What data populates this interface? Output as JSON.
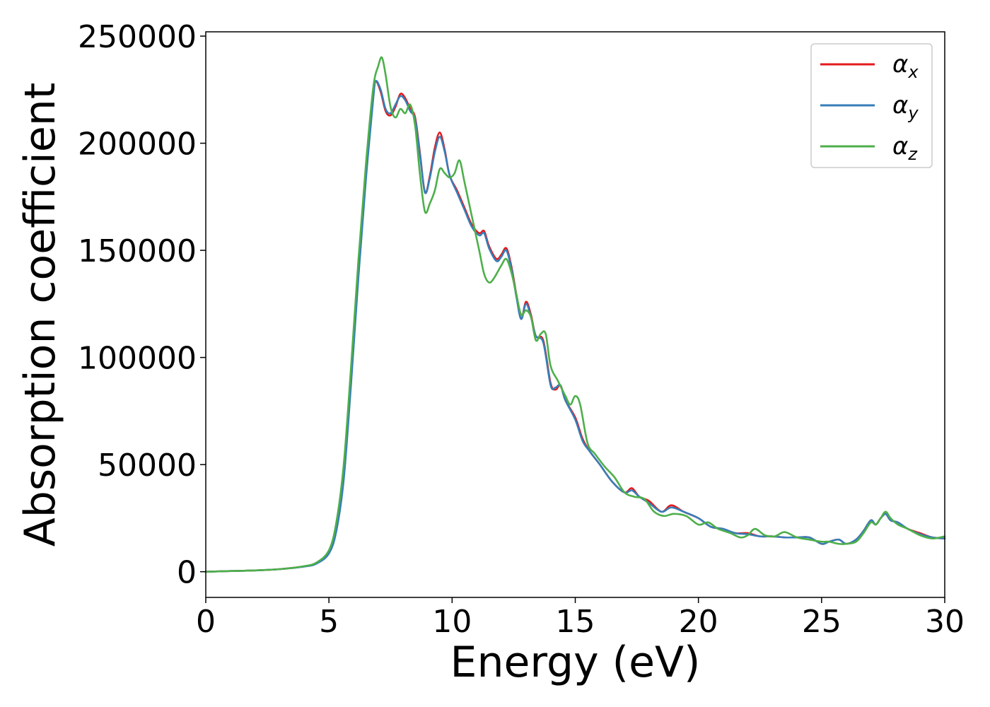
{
  "chart_data": {
    "type": "line",
    "title": "",
    "xlabel": "Energy (eV)",
    "ylabel": "Absorption coefficient",
    "xlim": [
      0,
      30
    ],
    "ylim": [
      -12000,
      252000
    ],
    "xticks": [
      0,
      5,
      10,
      15,
      20,
      25,
      30
    ],
    "xtick_labels": [
      "0",
      "5",
      "10",
      "15",
      "20",
      "25",
      "30"
    ],
    "yticks": [
      0,
      50000,
      100000,
      150000,
      200000,
      250000
    ],
    "ytick_labels": [
      "0",
      "50000",
      "100000",
      "150000",
      "200000",
      "250000"
    ],
    "grid": false,
    "legend_position": "top-right",
    "series": [
      {
        "name": "α_x",
        "symbol": "α",
        "subscript": "x",
        "color": "#e41a1c",
        "x": [
          0,
          1,
          2,
          3,
          4,
          4.5,
          5,
          5.3,
          5.6,
          5.9,
          6.2,
          6.5,
          6.8,
          6.9,
          7.1,
          7.3,
          7.5,
          7.7,
          7.9,
          8.1,
          8.3,
          8.5,
          8.7,
          8.9,
          9.1,
          9.3,
          9.5,
          9.7,
          9.9,
          10.2,
          10.5,
          10.8,
          11.1,
          11.3,
          11.5,
          11.8,
          12.0,
          12.2,
          12.4,
          12.6,
          12.8,
          13.0,
          13.2,
          13.4,
          13.7,
          14.0,
          14.2,
          14.4,
          14.6,
          15.0,
          15.3,
          15.6,
          16.0,
          16.5,
          17.0,
          17.3,
          17.6,
          18.0,
          18.5,
          18.9,
          19.4,
          20.0,
          20.5,
          21.0,
          21.5,
          22.0,
          22.5,
          23.0,
          23.5,
          24.0,
          24.5,
          25.0,
          25.3,
          25.7,
          26.0,
          26.4,
          26.7,
          27.0,
          27.2,
          27.4,
          27.6,
          27.8,
          28.1,
          28.5,
          29.0,
          29.5,
          30.0
        ],
        "y": [
          0,
          300,
          600,
          1200,
          2500,
          4000,
          9000,
          20000,
          45000,
          90000,
          140000,
          185000,
          222000,
          229000,
          224000,
          215000,
          213000,
          217000,
          223000,
          221000,
          216000,
          212000,
          195000,
          177000,
          185000,
          198000,
          205000,
          197000,
          185000,
          178000,
          170000,
          162000,
          158000,
          159000,
          152000,
          146000,
          148000,
          151000,
          143000,
          130000,
          118000,
          126000,
          120000,
          110000,
          108000,
          88000,
          85000,
          87000,
          80000,
          72000,
          62000,
          56000,
          50000,
          42000,
          37000,
          39000,
          35000,
          33000,
          28000,
          31000,
          28000,
          25000,
          21000,
          20000,
          18000,
          18000,
          16500,
          16500,
          16000,
          16000,
          16000,
          13000,
          14000,
          15000,
          13000,
          15000,
          19000,
          24000,
          22000,
          25000,
          27000,
          24000,
          23000,
          20000,
          18000,
          16000,
          15500
        ]
      },
      {
        "name": "α_y",
        "symbol": "α",
        "subscript": "y",
        "color": "#377eb8",
        "x": [
          0,
          1,
          2,
          3,
          4,
          4.5,
          5,
          5.3,
          5.6,
          5.9,
          6.2,
          6.5,
          6.8,
          6.9,
          7.1,
          7.3,
          7.5,
          7.7,
          7.9,
          8.1,
          8.3,
          8.5,
          8.7,
          8.9,
          9.1,
          9.3,
          9.5,
          9.7,
          9.9,
          10.2,
          10.5,
          10.8,
          11.1,
          11.3,
          11.5,
          11.8,
          12.0,
          12.2,
          12.4,
          12.6,
          12.8,
          13.0,
          13.2,
          13.4,
          13.7,
          14.0,
          14.2,
          14.4,
          14.6,
          15.0,
          15.3,
          15.6,
          16.0,
          16.5,
          17.0,
          17.3,
          17.6,
          18.0,
          18.5,
          18.9,
          19.4,
          20.0,
          20.5,
          21.0,
          21.5,
          22.0,
          22.5,
          23.0,
          23.5,
          24.0,
          24.5,
          25.0,
          25.3,
          25.7,
          26.0,
          26.4,
          26.7,
          27.0,
          27.2,
          27.4,
          27.6,
          27.8,
          28.1,
          28.5,
          29.0,
          29.5,
          30.0
        ],
        "y": [
          0,
          300,
          600,
          1200,
          2400,
          3800,
          8500,
          19000,
          43000,
          88000,
          138000,
          183000,
          221000,
          229000,
          225000,
          216000,
          214000,
          218000,
          222000,
          220000,
          215000,
          211000,
          194000,
          177000,
          184000,
          196000,
          203000,
          196000,
          185000,
          177000,
          169000,
          161000,
          157000,
          158000,
          151000,
          145000,
          147000,
          150000,
          142000,
          129000,
          118000,
          125000,
          119000,
          110000,
          107000,
          87000,
          86000,
          87000,
          80000,
          71000,
          61000,
          56000,
          50000,
          42000,
          37000,
          38000,
          35000,
          32000,
          28000,
          30000,
          28000,
          25000,
          21000,
          20000,
          18000,
          17500,
          16500,
          16500,
          16000,
          16000,
          16000,
          13000,
          14000,
          15000,
          13000,
          15000,
          19000,
          24000,
          22000,
          25000,
          27000,
          24000,
          23000,
          20000,
          17500,
          16000,
          15500
        ]
      },
      {
        "name": "α_z",
        "symbol": "α",
        "subscript": "z",
        "color": "#4daf4a",
        "x": [
          0,
          1,
          2,
          3,
          4,
          4.5,
          5,
          5.3,
          5.6,
          5.9,
          6.2,
          6.5,
          6.8,
          7.0,
          7.15,
          7.3,
          7.5,
          7.7,
          7.9,
          8.1,
          8.3,
          8.5,
          8.7,
          8.9,
          9.1,
          9.3,
          9.5,
          9.7,
          9.9,
          10.1,
          10.3,
          10.5,
          10.8,
          11.1,
          11.3,
          11.5,
          11.7,
          12.0,
          12.2,
          12.4,
          12.6,
          12.8,
          13.0,
          13.2,
          13.4,
          13.6,
          13.8,
          14.0,
          14.3,
          14.6,
          14.8,
          15.0,
          15.2,
          15.5,
          15.8,
          16.2,
          16.6,
          17.0,
          17.4,
          17.8,
          18.2,
          18.6,
          19.0,
          19.5,
          20.0,
          20.4,
          20.8,
          21.3,
          21.7,
          22.0,
          22.3,
          22.7,
          23.1,
          23.5,
          24.0,
          24.5,
          25.0,
          25.3,
          25.7,
          26.0,
          26.4,
          26.7,
          27.0,
          27.2,
          27.4,
          27.6,
          27.8,
          28.1,
          28.5,
          29.0,
          29.5,
          30.0
        ],
        "y": [
          0,
          300,
          600,
          1200,
          2600,
          4300,
          10000,
          23000,
          50000,
          96000,
          146000,
          190000,
          226000,
          236000,
          240000,
          232000,
          217000,
          212000,
          216000,
          214000,
          218000,
          208000,
          185000,
          168000,
          172000,
          178000,
          188000,
          186000,
          184000,
          186000,
          192000,
          182000,
          166000,
          150000,
          139000,
          135000,
          137000,
          143000,
          146000,
          140000,
          130000,
          120000,
          122000,
          119000,
          108000,
          111000,
          111000,
          96000,
          89000,
          82000,
          78000,
          82000,
          78000,
          60000,
          55000,
          49000,
          44000,
          37000,
          35000,
          34000,
          28000,
          26000,
          27000,
          26000,
          22000,
          23000,
          20000,
          18000,
          16000,
          17000,
          20000,
          17000,
          16500,
          18500,
          16000,
          15000,
          14000,
          14000,
          13000,
          13000,
          14000,
          18000,
          23000,
          22000,
          25000,
          28000,
          25000,
          22000,
          20000,
          17000,
          15500,
          16500
        ]
      }
    ]
  }
}
